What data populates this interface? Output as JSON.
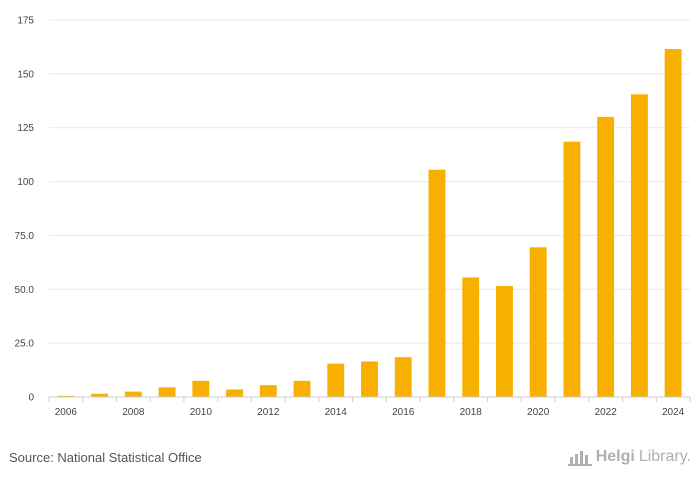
{
  "chart_data": {
    "type": "bar",
    "title": "",
    "xlabel": "",
    "ylabel": "",
    "ylim": [
      0,
      175
    ],
    "y_ticks": [
      "0",
      "25.0",
      "50.0",
      "75.0",
      "100",
      "125",
      "150",
      "175"
    ],
    "y_tick_values": [
      0,
      25,
      50,
      75,
      100,
      125,
      150,
      175
    ],
    "categories": [
      "2006",
      "2007",
      "2008",
      "2009",
      "2010",
      "2011",
      "2012",
      "2013",
      "2014",
      "2015",
      "2016",
      "2017",
      "2018",
      "2019",
      "2020",
      "2021",
      "2022",
      "2023",
      "2024"
    ],
    "x_tick_labels": [
      "2006",
      "",
      "2008",
      "",
      "2010",
      "",
      "2012",
      "",
      "2014",
      "",
      "2016",
      "",
      "2018",
      "",
      "2020",
      "",
      "2022",
      "",
      "2024"
    ],
    "values": [
      0.5,
      1.5,
      2.5,
      4.5,
      7.5,
      3.5,
      5.5,
      7.5,
      15.5,
      16.5,
      18.5,
      105.5,
      55.5,
      51.5,
      69.5,
      118.5,
      130,
      140.5,
      161.5
    ],
    "bar_color": "#f7b000",
    "grid": true
  },
  "footer": {
    "source": "Source: National Statistical Office",
    "logo_strong": "Helgi",
    "logo_light": "Library."
  },
  "colors": {
    "grid": "#e8e8e8",
    "axis": "#cccccc",
    "logo": "#b0b0b0"
  }
}
